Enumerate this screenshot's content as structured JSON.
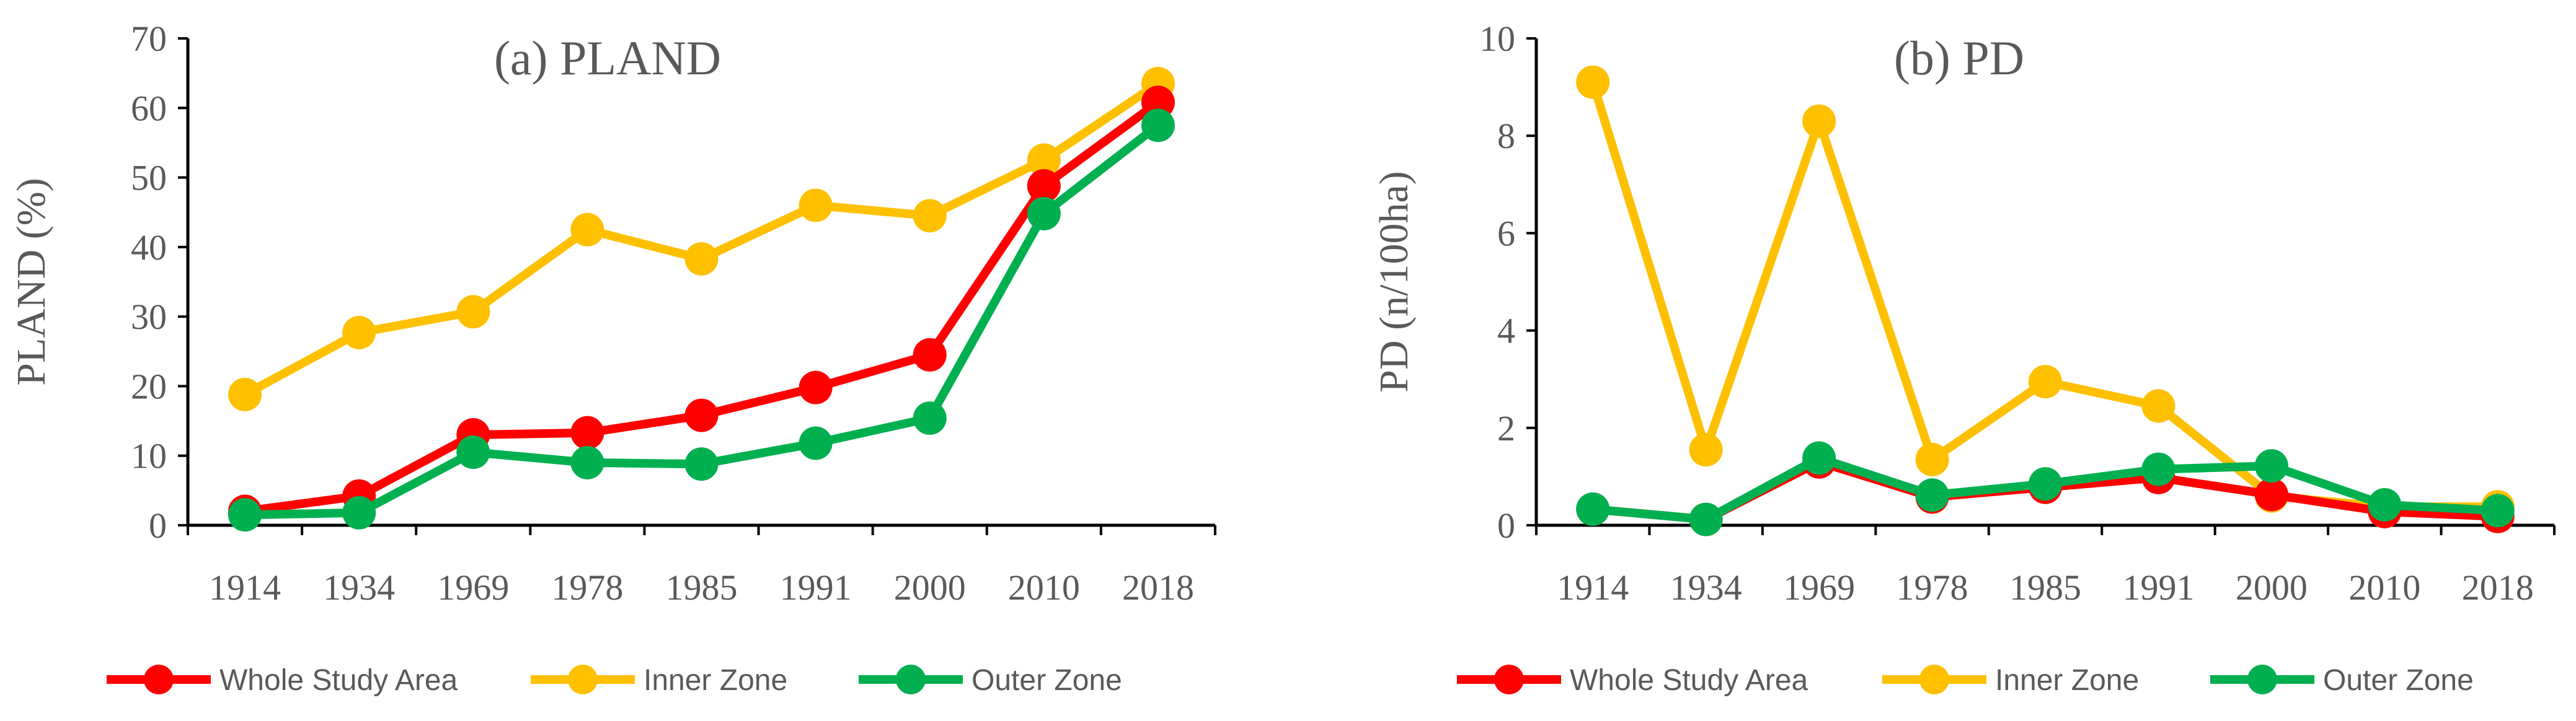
{
  "chart_data": [
    {
      "type": "line",
      "title": "(a) PLAND",
      "xlabel": "",
      "ylabel": "PLAND (%)",
      "categories": [
        "1914",
        "1934",
        "1969",
        "1978",
        "1985",
        "1991",
        "2000",
        "2010",
        "2018"
      ],
      "ylim": [
        0,
        70
      ],
      "yticks": [
        0,
        10,
        20,
        30,
        40,
        50,
        60,
        70
      ],
      "grid": false,
      "series": [
        {
          "name": "Whole Study Area",
          "color": "#ff0000",
          "values": [
            2.0,
            4.2,
            13.0,
            13.3,
            15.8,
            19.8,
            24.5,
            48.8,
            60.8
          ]
        },
        {
          "name": "Inner Zone",
          "color": "#ffc000",
          "values": [
            18.8,
            27.7,
            30.7,
            42.5,
            38.3,
            46.0,
            44.5,
            52.5,
            63.5
          ]
        },
        {
          "name": "Outer Zone",
          "color": "#00b050",
          "values": [
            1.5,
            1.8,
            10.5,
            9.0,
            8.8,
            11.8,
            15.4,
            44.8,
            57.5
          ]
        }
      ]
    },
    {
      "type": "line",
      "title": "(b) PD",
      "xlabel": "",
      "ylabel": "PD (n/100ha)",
      "categories": [
        "1914",
        "1934",
        "1969",
        "1978",
        "1985",
        "1991",
        "2000",
        "2010",
        "2018"
      ],
      "ylim": [
        0,
        10
      ],
      "yticks": [
        0,
        2,
        4,
        6,
        8,
        10
      ],
      "grid": false,
      "series": [
        {
          "name": "Whole Study Area",
          "color": "#ff0000",
          "values": [
            0.33,
            0.12,
            1.3,
            0.58,
            0.78,
            0.98,
            0.63,
            0.28,
            0.18
          ]
        },
        {
          "name": "Inner Zone",
          "color": "#ffc000",
          "values": [
            9.1,
            1.55,
            8.3,
            1.35,
            2.95,
            2.45,
            0.6,
            0.38,
            0.38
          ]
        },
        {
          "name": "Outer Zone",
          "color": "#00b050",
          "values": [
            0.33,
            0.12,
            1.38,
            0.62,
            0.85,
            1.15,
            1.22,
            0.42,
            0.3
          ]
        }
      ]
    }
  ]
}
